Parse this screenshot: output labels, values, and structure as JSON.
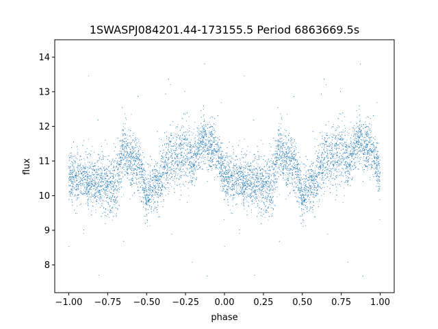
{
  "chart_data": {
    "type": "scatter",
    "title": "1SWASPJ084201.44-173155.5 Period 6863669.5s",
    "xlabel": "phase",
    "ylabel": "flux",
    "xlim": [
      -1.09,
      1.09
    ],
    "ylim": [
      7.2,
      14.5
    ],
    "xticks": [
      -1.0,
      -0.75,
      -0.5,
      -0.25,
      0.0,
      0.25,
      0.5,
      0.75,
      1.0
    ],
    "xtick_labels": [
      "−1.00",
      "−0.75",
      "−0.50",
      "−0.25",
      "0.00",
      "0.25",
      "0.50",
      "0.75",
      "1.00"
    ],
    "yticks": [
      8,
      9,
      10,
      11,
      12,
      13,
      14
    ],
    "ytick_labels": [
      "8",
      "9",
      "10",
      "11",
      "12",
      "13",
      "14"
    ],
    "grid": false,
    "marker_color": "#1f77b4",
    "profile_phase": [
      0.0,
      0.05,
      0.1,
      0.15,
      0.2,
      0.25,
      0.3,
      0.35,
      0.4,
      0.45,
      0.5,
      0.55,
      0.6,
      0.65,
      0.7,
      0.75,
      0.8,
      0.85,
      0.9,
      0.95,
      1.0
    ],
    "profile_flux": [
      10.6,
      10.4,
      10.6,
      10.3,
      10.5,
      10.3,
      10.2,
      11.4,
      11.0,
      10.9,
      10.0,
      10.2,
      10.6,
      11.2,
      11.0,
      11.4,
      10.9,
      11.6,
      11.5,
      11.2,
      10.6
    ],
    "profile_scatter": [
      0.45,
      0.45,
      0.45,
      0.5,
      0.45,
      0.55,
      0.6,
      0.5,
      0.45,
      0.5,
      0.45,
      0.5,
      0.5,
      0.55,
      0.5,
      0.6,
      0.5,
      0.45,
      0.45,
      0.45,
      0.45
    ],
    "point_count": 9000
  }
}
